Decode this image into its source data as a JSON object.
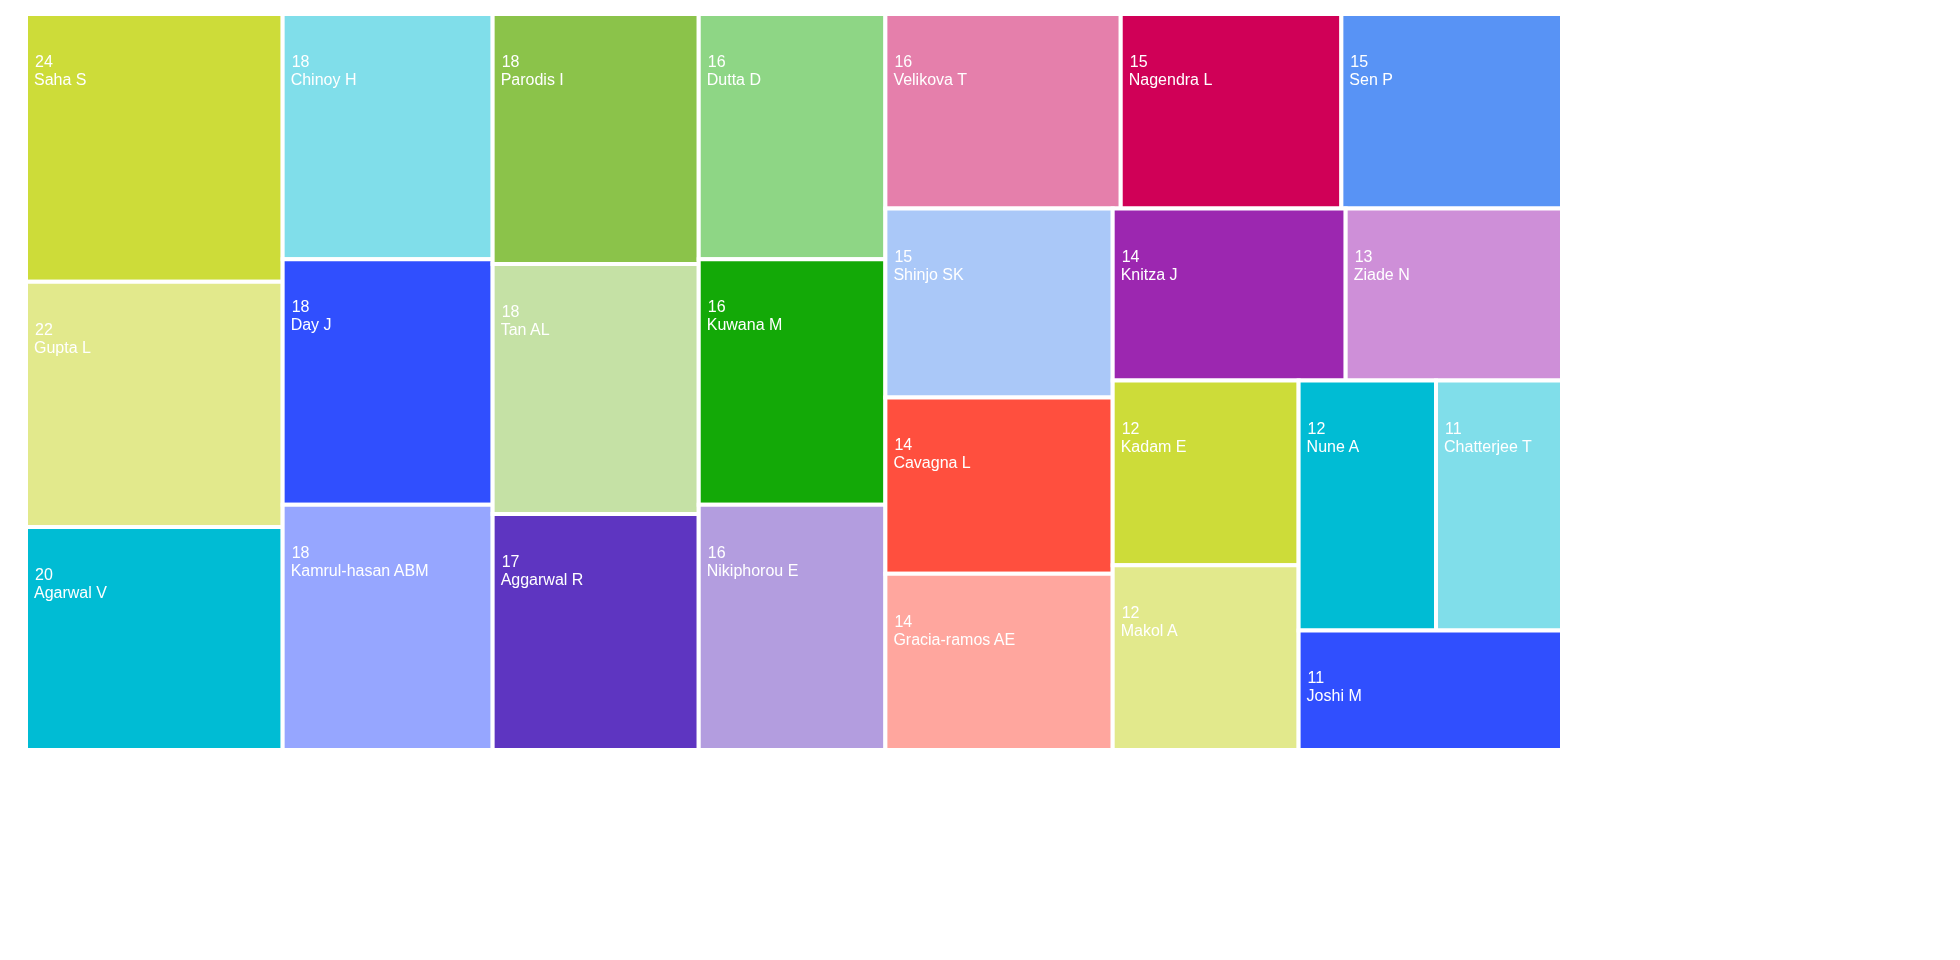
{
  "chart_data": {
    "type": "other",
    "categories": [
      "Saha S",
      "Gupta L",
      "Agarwal V",
      "Chinoy H",
      "Day J",
      "Kamrul-hasan ABM",
      "Parodis I",
      "Tan AL",
      "Aggarwal R",
      "Dutta D",
      "Kuwana M",
      "Nikiphorou E",
      "Velikova T",
      "Nagendra L",
      "Sen P",
      "Shinjo SK",
      "Cavagna L",
      "Gracia-ramos AE",
      "Knitza J",
      "Ziade N",
      "Kadam E",
      "Makol A",
      "Nune A",
      "Chatterjee T",
      "Joshi M"
    ],
    "values": [
      24,
      22,
      20,
      18,
      18,
      18,
      18,
      18,
      17,
      16,
      16,
      16,
      16,
      15,
      15,
      15,
      14,
      14,
      14,
      13,
      12,
      12,
      12,
      11,
      11
    ],
    "colors": [
      "#cddc39",
      "#e2e98c",
      "#00bcd4",
      "#80deea",
      "#304ffe",
      "#96a6ff",
      "#8bc34a",
      "#c5e1a5",
      "#5e35c1",
      "#8ed685",
      "#13a907",
      "#b39ddf",
      "#e57fab",
      "#d00057",
      "#5893f5",
      "#aac8f8",
      "#ff4f3e",
      "#ffa69e",
      "#9c27b0",
      "#ce8fd8",
      "#cddc39",
      "#e2e98c",
      "#00bcd4",
      "#80deea",
      "#304ffe"
    ],
    "data_labels": true
  }
}
